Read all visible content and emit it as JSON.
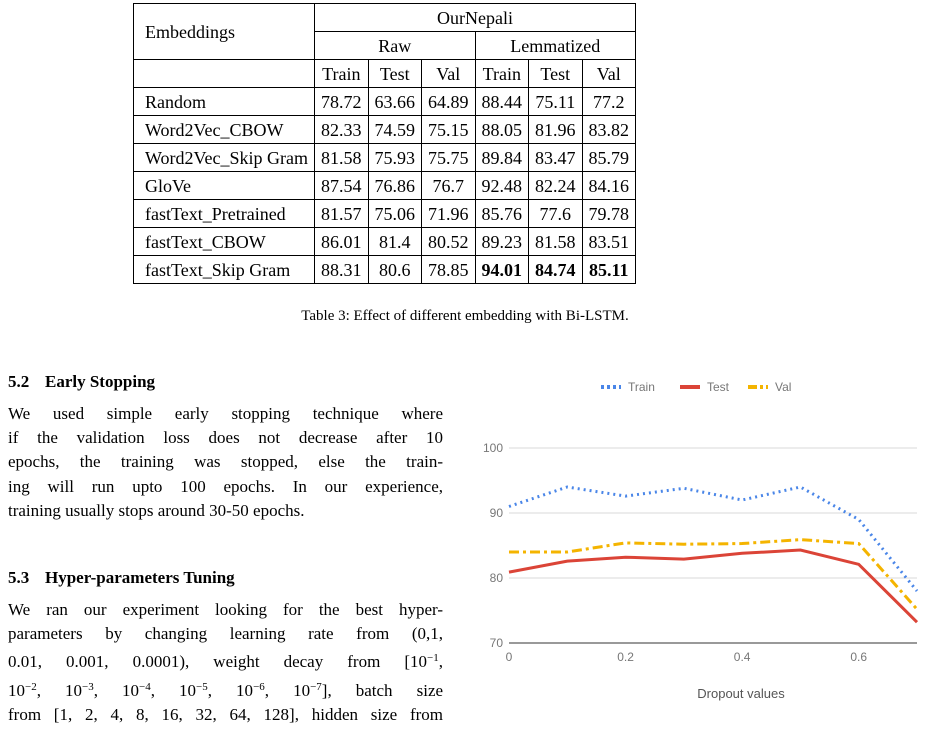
{
  "table": {
    "stub_header": "Embeddings",
    "group_header": "OurNepali",
    "subgroups": [
      "Raw",
      "Lemmatized"
    ],
    "columns": [
      "Train",
      "Test",
      "Val",
      "Train",
      "Test",
      "Val"
    ],
    "rows": [
      {
        "name": "Random",
        "values": [
          "78.72",
          "63.66",
          "64.89",
          "88.44",
          "75.11",
          "77.2"
        ]
      },
      {
        "name": "Word2Vec_CBOW",
        "values": [
          "82.33",
          "74.59",
          "75.15",
          "88.05",
          "81.96",
          "83.82"
        ]
      },
      {
        "name": "Word2Vec_Skip Gram",
        "values": [
          "81.58",
          "75.93",
          "75.75",
          "89.84",
          "83.47",
          "85.79"
        ]
      },
      {
        "name": "GloVe",
        "values": [
          "87.54",
          "76.86",
          "76.7",
          "92.48",
          "82.24",
          "84.16"
        ]
      },
      {
        "name": "fastText_Pretrained",
        "values": [
          "81.57",
          "75.06",
          "71.96",
          "85.76",
          "77.6",
          "79.78"
        ]
      },
      {
        "name": "fastText_CBOW",
        "values": [
          "86.01",
          "81.4",
          "80.52",
          "89.23",
          "81.58",
          "83.51"
        ]
      },
      {
        "name": "fastText_Skip Gram",
        "values": [
          "88.31",
          "80.6",
          "78.85",
          "94.01",
          "84.74",
          "85.11"
        ]
      }
    ],
    "bold_cells": [
      [
        6,
        3
      ],
      [
        6,
        4
      ],
      [
        6,
        5
      ]
    ],
    "caption": "Table 3: Effect of different embedding with Bi-LSTM."
  },
  "section_52": {
    "number": "5.2",
    "title": "Early Stopping",
    "lines": [
      "We used simple early stopping technique where",
      "if the validation loss does not decrease after 10",
      "epochs, the training was stopped, else the train-",
      "ing will run upto 100 epochs. In our experience,",
      "training usually stops around 30-50 epochs."
    ]
  },
  "section_53": {
    "number": "5.3",
    "title": "Hyper-parameters Tuning",
    "line1": "We ran our experiment looking for the best hyper-",
    "line2": "parameters by changing learning rate from (0,1,",
    "line3_prefix": "0.01, 0.001, 0.0001), weight decay from [10",
    "line4_suffix": "], batch size",
    "line5": "from [1, 2, 4, 8, 16, 32, 64, 128], hidden size from",
    "decay_exponents": [
      "−1",
      "−2",
      "−3",
      "−4",
      "−5",
      "−6",
      "−7"
    ]
  },
  "chart_data": {
    "type": "line",
    "xlabel": "Dropout values",
    "ylabel": "",
    "xlim": [
      0,
      0.7
    ],
    "ylim": [
      70,
      100
    ],
    "x_ticks": [
      "0",
      "0.2",
      "0.4",
      "0.6"
    ],
    "y_ticks": [
      "70",
      "80",
      "90",
      "100"
    ],
    "legend_position": "top",
    "grid": true,
    "x": [
      0,
      0.1,
      0.2,
      0.3,
      0.4,
      0.5,
      0.6,
      0.7
    ],
    "series": [
      {
        "name": "Train",
        "color": "#4a86e8",
        "style": "dotted",
        "values": [
          91.0,
          94.0,
          92.6,
          93.8,
          92.0,
          94.0,
          89.0,
          78.0
        ]
      },
      {
        "name": "Test",
        "color": "#db4437",
        "style": "solid",
        "values": [
          80.9,
          82.6,
          83.2,
          82.9,
          83.8,
          84.3,
          82.1,
          73.2
        ]
      },
      {
        "name": "Val",
        "color": "#f4b400",
        "style": "dashdot",
        "values": [
          84.0,
          84.0,
          85.4,
          85.2,
          85.3,
          85.9,
          85.3,
          75.2
        ]
      }
    ]
  }
}
